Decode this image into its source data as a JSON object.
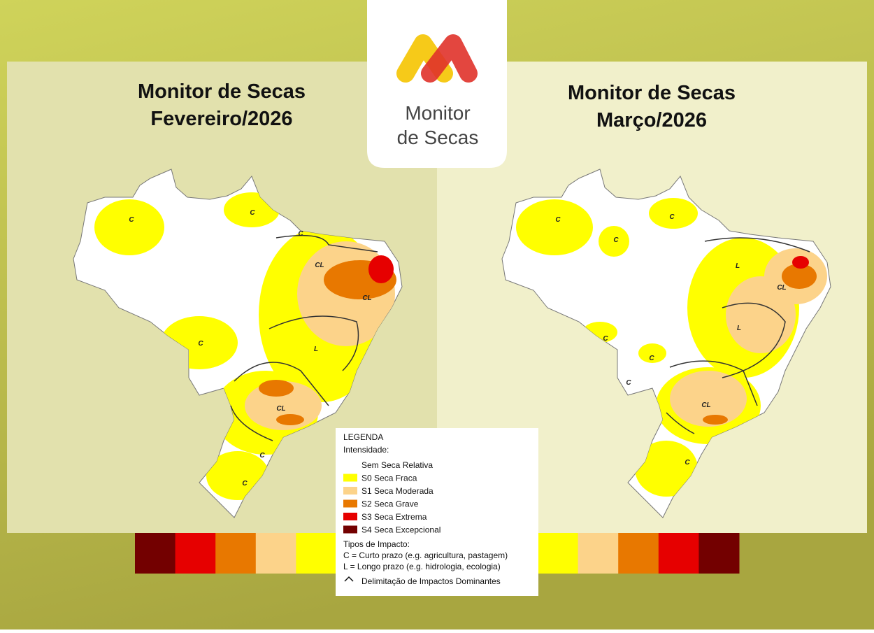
{
  "logo": {
    "line1": "Monitor",
    "line2": "de Secas"
  },
  "maps": [
    {
      "title": "Monitor de Secas",
      "subtitle": "Fevereiro/2026",
      "labels": [
        "C",
        "C",
        "C",
        "CL",
        "CL",
        "C",
        "L",
        "CL",
        "C",
        "C"
      ]
    },
    {
      "title": "Monitor de Secas",
      "subtitle": "Março/2026",
      "labels": [
        "C",
        "C",
        "C",
        "L",
        "CL",
        "L",
        "C",
        "C",
        "C",
        "CL",
        "C"
      ]
    }
  ],
  "legend": {
    "title": "LEGENDA",
    "intensity_heading": "Intensidade:",
    "intensity": [
      {
        "label": "Sem Seca Relativa",
        "color": "#ffffff"
      },
      {
        "label": "S0 Seca Fraca",
        "color": "#ffff00"
      },
      {
        "label": "S1 Seca Moderada",
        "color": "#fcd38a"
      },
      {
        "label": "S2 Seca Grave",
        "color": "#e87800"
      },
      {
        "label": "S3 Seca Extrema",
        "color": "#e60000"
      },
      {
        "label": "S4 Seca Excepcional",
        "color": "#730000"
      }
    ],
    "impact_heading": "Tipos de Impacto:",
    "impact": [
      "C = Curto prazo (e.g. agricultura, pastagem)",
      "L = Longo prazo (e.g. hidrologia, ecologia)"
    ],
    "delimitation": "Delimitação de Impactos Dominantes"
  }
}
